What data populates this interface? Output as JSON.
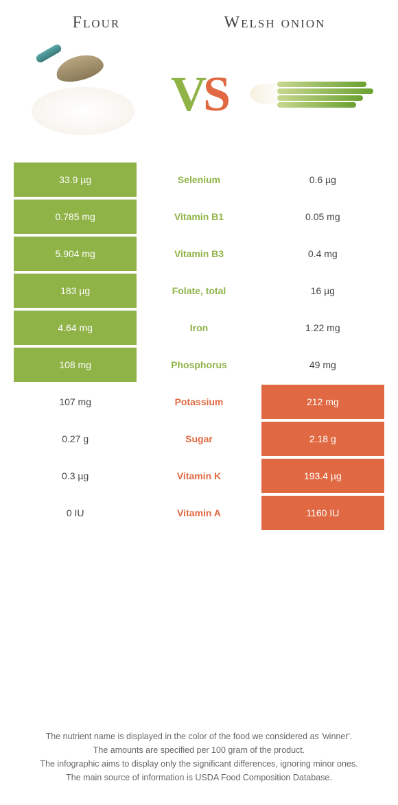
{
  "colors": {
    "green": "#8fb347",
    "orange": "#e06943"
  },
  "titles": {
    "left": "Flour",
    "right": "Welsh onion"
  },
  "vs": {
    "v": "V",
    "s": "S"
  },
  "rows": [
    {
      "l": "33.9 µg",
      "m": "Selenium",
      "r": "0.6 µg",
      "w": "l"
    },
    {
      "l": "0.785 mg",
      "m": "Vitamin B1",
      "r": "0.05 mg",
      "w": "l"
    },
    {
      "l": "5.904 mg",
      "m": "Vitamin B3",
      "r": "0.4 mg",
      "w": "l"
    },
    {
      "l": "183 µg",
      "m": "Folate, total",
      "r": "16 µg",
      "w": "l"
    },
    {
      "l": "4.64 mg",
      "m": "Iron",
      "r": "1.22 mg",
      "w": "l"
    },
    {
      "l": "108 mg",
      "m": "Phosphorus",
      "r": "49 mg",
      "w": "l"
    },
    {
      "l": "107 mg",
      "m": "Potassium",
      "r": "212 mg",
      "w": "r"
    },
    {
      "l": "0.27 g",
      "m": "Sugar",
      "r": "2.18 g",
      "w": "r"
    },
    {
      "l": "0.3 µg",
      "m": "Vitamin K",
      "r": "193.4 µg",
      "w": "r"
    },
    {
      "l": "0 IU",
      "m": "Vitamin A",
      "r": "1160 IU",
      "w": "r"
    }
  ],
  "footer": {
    "l1": "The nutrient name is displayed in the color of the food we considered as 'winner'.",
    "l2": "The amounts are specified per 100 gram of the product.",
    "l3": "The infographic aims to display only the significant differences, ignoring minor ones.",
    "l4": "The main source of information is USDA Food Composition Database."
  }
}
